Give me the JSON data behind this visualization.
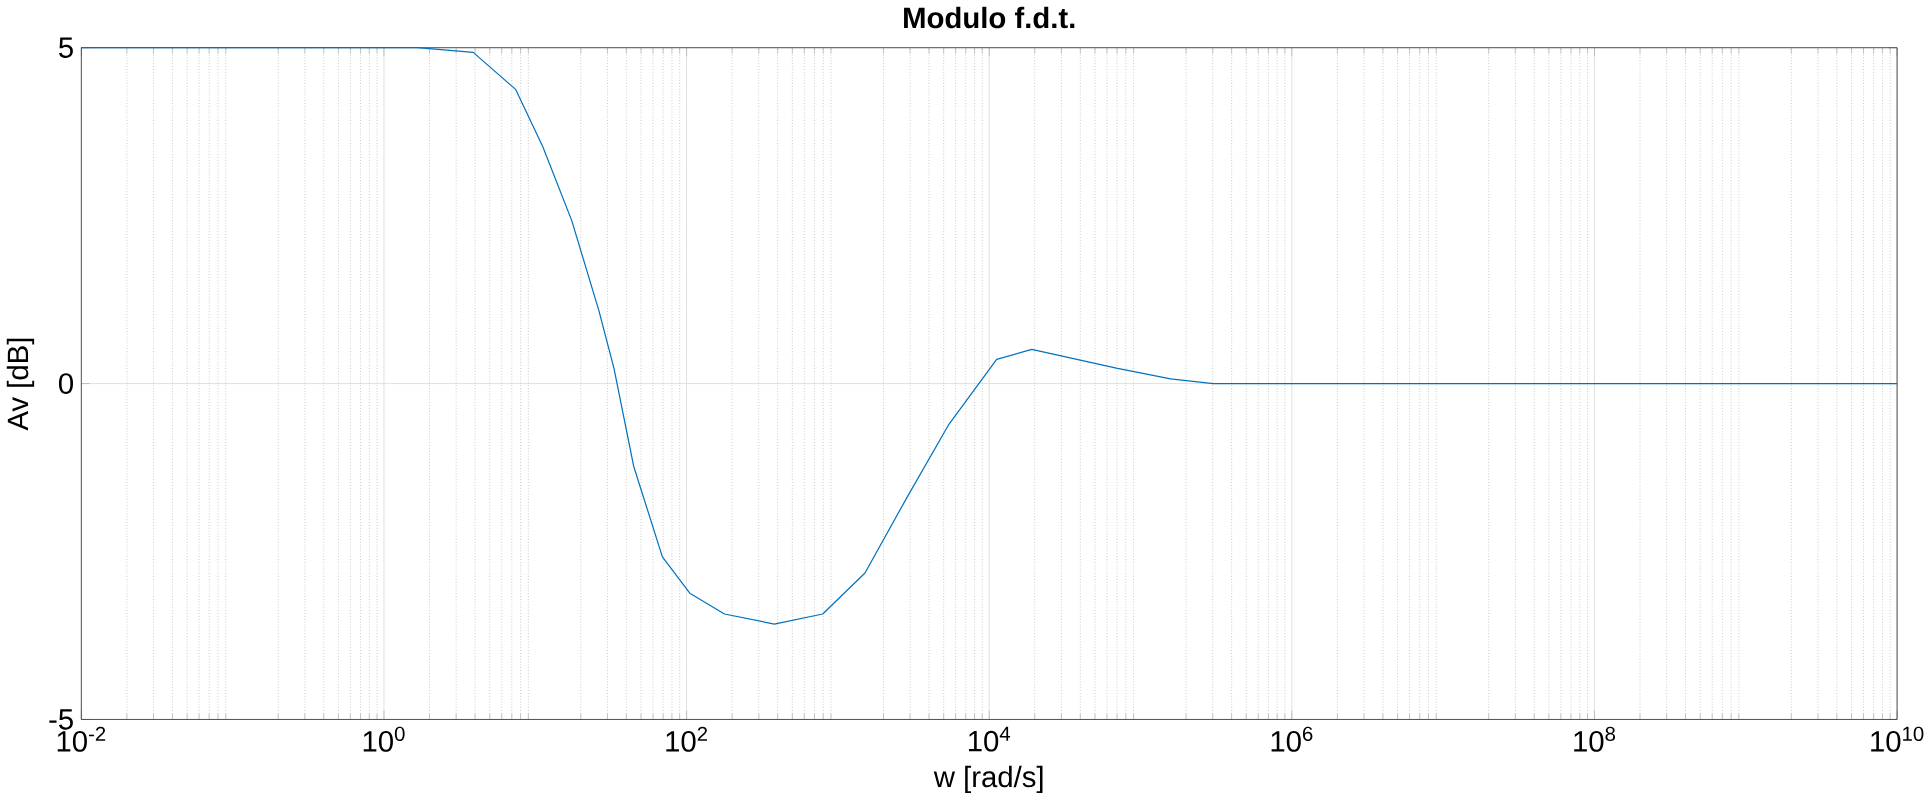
{
  "chart_data": {
    "type": "line",
    "title": "Modulo f.d.t.",
    "xlabel": "w [rad/s]",
    "ylabel": "Av [dB]",
    "log": "x",
    "grid": true,
    "xlim": [
      0.01,
      10000000000
    ],
    "ylim": [
      -5,
      5
    ],
    "xticks": [
      {
        "value": 0.01,
        "label": "10$^{-2}$"
      },
      {
        "value": 1,
        "label": "10$^{0}$"
      },
      {
        "value": 100,
        "label": "10$^{2}$"
      },
      {
        "value": 10000,
        "label": "10$^{4}$"
      },
      {
        "value": 1000000,
        "label": "10$^{6}$"
      },
      {
        "value": 100000000,
        "label": "10$^{8}$"
      },
      {
        "value": 10000000000,
        "label": "10$^{10}$"
      }
    ],
    "yticks": [
      -5,
      0,
      5
    ],
    "series": [
      {
        "color": "#0072bd",
        "line_style": "solid",
        "marker": "none",
        "x": [
          0.01,
          0.1,
          1,
          1.66,
          3.89,
          7.41,
          11.2,
          17.4,
          26.3,
          33.1,
          44.7,
          69.2,
          105,
          178,
          380,
          794,
          1510,
          2820,
          5370,
          11200,
          19100,
          69200,
          158000,
          302000,
          10000000,
          10000000000
        ],
        "values": [
          5,
          5,
          5,
          5,
          4.93,
          4.38,
          3.53,
          2.43,
          1.09,
          0.23,
          -1.23,
          -2.58,
          -3.12,
          -3.43,
          -3.58,
          -3.43,
          -2.82,
          -1.72,
          -0.62,
          0.36,
          0.51,
          0.23,
          0.07,
          0,
          0,
          0
        ]
      }
    ]
  }
}
